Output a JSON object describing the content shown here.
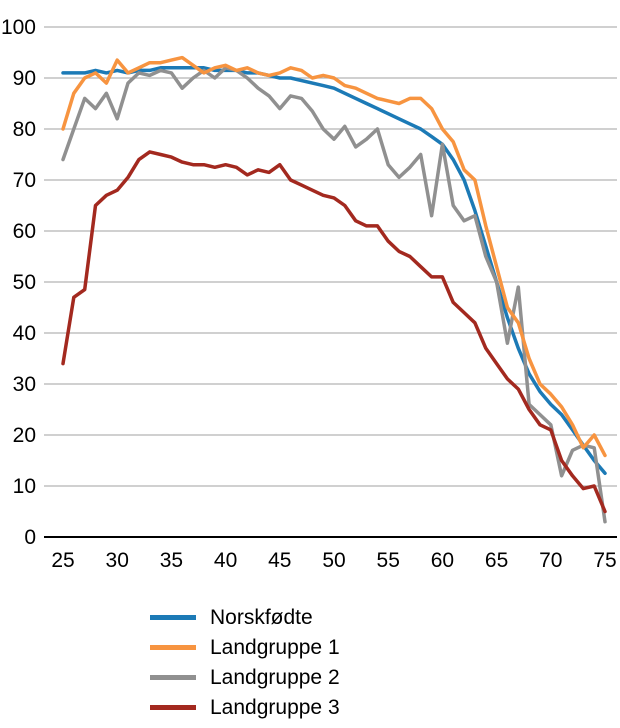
{
  "chart_data": {
    "type": "line",
    "title": "",
    "xlabel": "",
    "ylabel": "",
    "xlim": [
      25,
      75
    ],
    "ylim": [
      0,
      100
    ],
    "grid": true,
    "legend_position": "bottom",
    "xticks": [
      25,
      30,
      35,
      40,
      45,
      50,
      55,
      60,
      65,
      70,
      75
    ],
    "yticks": [
      0,
      10,
      20,
      30,
      40,
      50,
      60,
      70,
      80,
      90,
      100
    ],
    "x": [
      25,
      26,
      27,
      28,
      29,
      30,
      31,
      32,
      33,
      34,
      35,
      36,
      37,
      38,
      39,
      40,
      41,
      42,
      43,
      44,
      45,
      46,
      47,
      48,
      49,
      50,
      51,
      52,
      53,
      54,
      55,
      56,
      57,
      58,
      59,
      60,
      61,
      62,
      63,
      64,
      65,
      66,
      67,
      68,
      69,
      70,
      71,
      72,
      73,
      74,
      75
    ],
    "series": [
      {
        "name": "Norskfødte",
        "color": "#1c7ab6",
        "values": [
          91,
          91,
          91,
          91.5,
          91,
          91.5,
          91,
          91.5,
          91.5,
          92,
          92,
          92,
          92,
          92,
          91.5,
          91.5,
          91.5,
          91,
          91,
          90.5,
          90,
          90,
          89.5,
          89,
          88.5,
          88,
          87,
          86,
          85,
          84,
          83,
          82,
          81,
          80,
          78.5,
          77,
          74,
          70,
          64,
          57,
          50,
          43,
          37,
          32,
          28.5,
          26,
          24,
          21,
          18,
          15,
          12.5
        ]
      },
      {
        "name": "Landgruppe 1",
        "color": "#f79440",
        "values": [
          80,
          87,
          90,
          91,
          89,
          93.5,
          91,
          92,
          93,
          93,
          93.5,
          94,
          92.5,
          91,
          92,
          92.5,
          91.5,
          92,
          91,
          90.5,
          91,
          92,
          91.5,
          90,
          90.5,
          90,
          88.5,
          88,
          87,
          86,
          85.5,
          85,
          86,
          86,
          84,
          80,
          77.5,
          72,
          70,
          61,
          53,
          45,
          42,
          35,
          30,
          28,
          25.5,
          22,
          17.5,
          20,
          16
        ]
      },
      {
        "name": "Landgruppe 2",
        "color": "#909090",
        "values": [
          74,
          80,
          86,
          84,
          87,
          82,
          89,
          91,
          90.5,
          91.5,
          91,
          88,
          90,
          91.5,
          90,
          92,
          91.5,
          90,
          88,
          86.5,
          84,
          86.5,
          86,
          83.5,
          80,
          78,
          80.5,
          76.5,
          78,
          80,
          73,
          70.5,
          72.5,
          75,
          63,
          77,
          65,
          62,
          63,
          55,
          50,
          38,
          49,
          26,
          24,
          22,
          12,
          17,
          18,
          17.5,
          3
        ]
      },
      {
        "name": "Landgruppe 3",
        "color": "#a3291f",
        "values": [
          34,
          47,
          48.5,
          65,
          67,
          68,
          70.5,
          74,
          75.5,
          75,
          74.5,
          73.5,
          73,
          73,
          72.5,
          73,
          72.5,
          71,
          72,
          71.5,
          73,
          70,
          69,
          68,
          67,
          66.5,
          65,
          62,
          61,
          61,
          58,
          56,
          55,
          53,
          51,
          51,
          46,
          44,
          42,
          37,
          34,
          31,
          29,
          25,
          22,
          21,
          15,
          12,
          9.5,
          10,
          5
        ]
      }
    ]
  }
}
